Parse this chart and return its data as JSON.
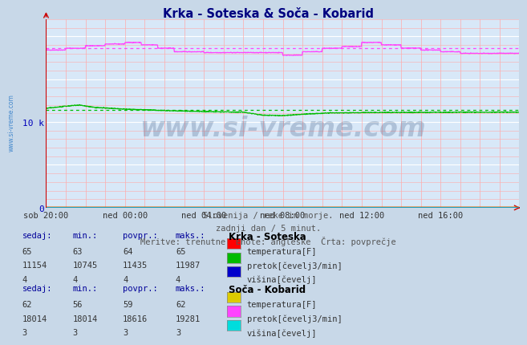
{
  "title": "Krka - Soteska & Soča - Kobarid",
  "subtitle_lines": [
    "Slovenija / reke in morje.",
    "zadnji dan / 5 minut.",
    "Meritve: trenutne  Enote: angleške  Črta: povprečje"
  ],
  "x_ticks": [
    "sob 20:00",
    "ned 00:00",
    "ned 04:00",
    "ned 08:00",
    "ned 12:00",
    "ned 16:00"
  ],
  "n_points": 1440,
  "fig_bg_color": "#c8d8e8",
  "plot_bg_color": "#d8e8f8",
  "grid_white_color": "#ffffff",
  "grid_pink_color": "#ffaaaa",
  "axis_color": "#cc0000",
  "watermark_text": "www.si-vreme.com",
  "watermark_color": "#1a3a6a",
  "left_label_color": "#4488cc",
  "krka_temp_color": "#ff0000",
  "krka_pretok_color": "#00bb00",
  "krka_visina_color": "#0000cc",
  "soca_temp_color": "#ddcc00",
  "soca_pretok_color": "#ff44ff",
  "soca_visina_color": "#00dddd",
  "krka_temp_sedaj": 65,
  "krka_temp_min": 63,
  "krka_temp_povpr": 64,
  "krka_temp_maks": 65,
  "krka_pretok_sedaj": 11154,
  "krka_pretok_min": 10745,
  "krka_pretok_povpr": 11435,
  "krka_pretok_maks": 11987,
  "krka_visina_sedaj": 4,
  "krka_visina_min": 4,
  "krka_visina_povpr": 4,
  "krka_visina_maks": 4,
  "soca_temp_sedaj": 62,
  "soca_temp_min": 56,
  "soca_temp_povpr": 59,
  "soca_temp_maks": 62,
  "soca_pretok_sedaj": 18014,
  "soca_pretok_min": 18014,
  "soca_pretok_povpr": 18616,
  "soca_pretok_maks": 19281,
  "soca_visina_sedaj": 3,
  "soca_visina_min": 3,
  "soca_visina_povpr": 3,
  "soca_visina_maks": 3,
  "ymax": 22000,
  "ylabel_color": "#0000bb",
  "table_header_color": "#000099",
  "table_text_color": "#333333",
  "table_title_color": "#000000"
}
